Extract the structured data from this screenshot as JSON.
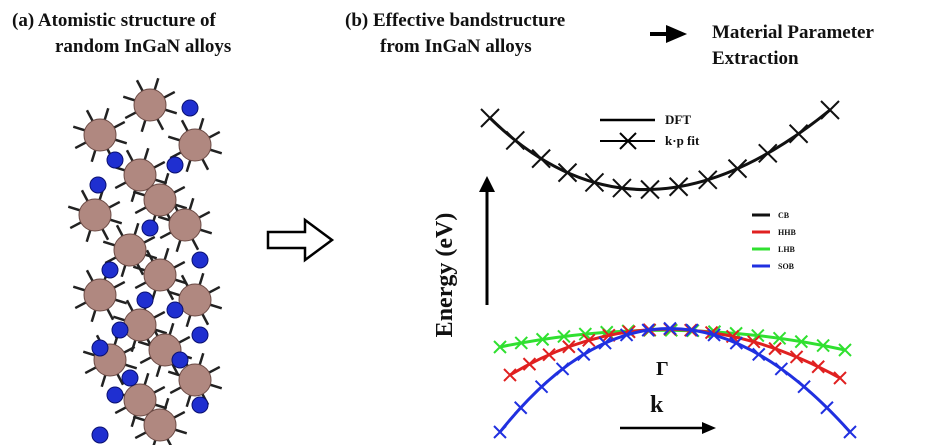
{
  "panel_a": {
    "title_line1": "(a) Atomistic structure of",
    "title_line2": "random InGaN alloys"
  },
  "panel_b": {
    "title_line1": "(b) Effective bandstructure",
    "title_line2": "from InGaN alloys"
  },
  "panel_c": {
    "title_line1": "Material Parameter",
    "title_line2": "Extraction"
  },
  "legend_fit": [
    "DFT",
    "k·p fit"
  ],
  "legend_bands": [
    "CB",
    "HHB",
    "LHB",
    "SOB"
  ],
  "axis_y": "Energy (eV)",
  "gamma_label": "Γ",
  "k_label": "k"
}
